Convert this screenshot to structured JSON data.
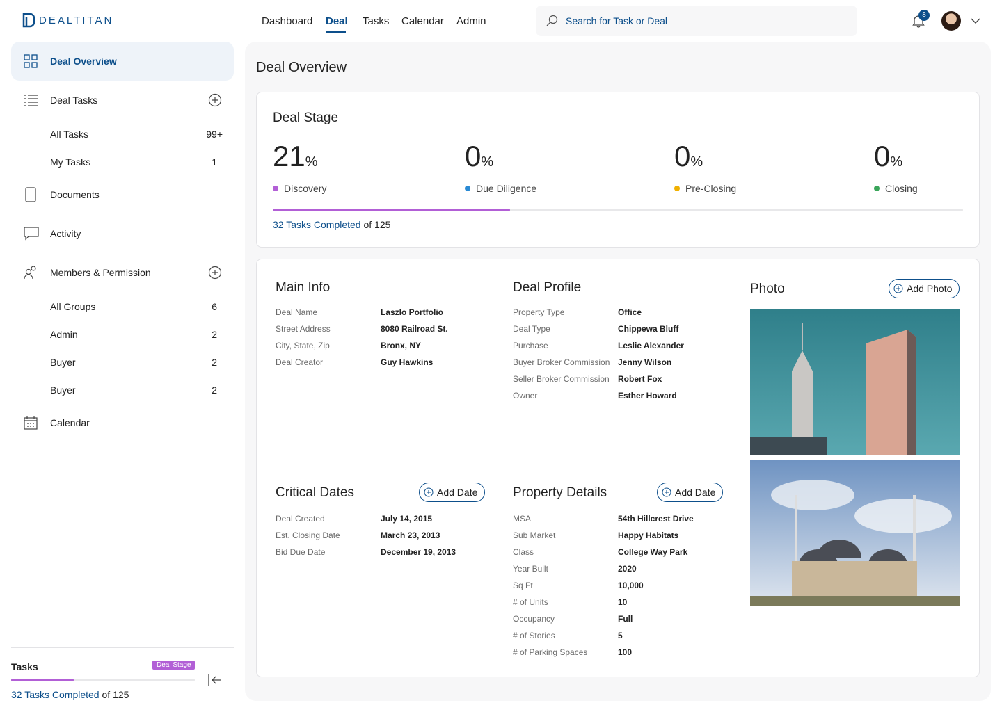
{
  "header": {
    "logo": "DEALTITAN",
    "nav": [
      "Dashboard",
      "Deal",
      "Tasks",
      "Calendar",
      "Admin"
    ],
    "search_placeholder": "Search for Task or Deal",
    "notifications": "8"
  },
  "sidebar": {
    "deal_overview": "Deal Overview",
    "deal_tasks": {
      "label": "Deal Tasks",
      "items": [
        [
          "All Tasks",
          "99+"
        ],
        [
          "My Tasks",
          "1"
        ]
      ]
    },
    "documents": "Documents",
    "activity": "Activity",
    "members": {
      "label": "Members & Permission",
      "items": [
        [
          "All Groups",
          "6"
        ],
        [
          "Admin",
          "2"
        ],
        [
          "Buyer",
          "2"
        ],
        [
          "Buyer",
          "2"
        ]
      ]
    },
    "calendar": "Calendar",
    "footer": {
      "title": "Tasks",
      "badge": "Deal Stage"
    }
  },
  "main": {
    "title": "Deal Overview",
    "deal_stage": {
      "title": "Deal Stage",
      "stages": [
        {
          "percent": "21",
          "unit": "%",
          "label": "Discovery",
          "color": "#b25fd6"
        },
        {
          "percent": "0",
          "unit": "%",
          "label": "Due Diligence",
          "color": "#2a8ad4"
        },
        {
          "percent": "0",
          "unit": "%",
          "label": "Pre-Closing",
          "color": "#f0b000"
        },
        {
          "percent": "0",
          "unit": "%",
          "label": "Closing",
          "color": "#3aa55a"
        }
      ],
      "progress": {
        "completed": "32 Tasks Completed",
        "total": "of 125"
      }
    },
    "main_info": {
      "title": "Main Info",
      "fields": [
        [
          "Deal Name",
          "Laszlo Portfolio"
        ],
        [
          "Street Address",
          "8080 Railroad St."
        ],
        [
          "City, State, Zip",
          "Bronx, NY"
        ],
        [
          "Deal Creator",
          "Guy Hawkins"
        ]
      ]
    },
    "deal_profile": {
      "title": "Deal Profile",
      "fields": [
        [
          "Property Type",
          "Office"
        ],
        [
          "Deal Type",
          "Chippewa Bluff"
        ],
        [
          "Purchase",
          "Leslie Alexander"
        ],
        [
          "Buyer Broker Commission",
          "Jenny Wilson"
        ],
        [
          "Seller Broker Commission",
          "Robert Fox"
        ],
        [
          "Owner",
          "Esther Howard"
        ]
      ]
    },
    "photo": {
      "title": "Photo",
      "button": "Add Photo"
    },
    "critical_dates": {
      "title": "Critical Dates",
      "button": "Add Date",
      "fields": [
        [
          "Deal Created",
          "July 14, 2015"
        ],
        [
          "Est. Closing Date",
          "March 23, 2013"
        ],
        [
          "Bid Due Date",
          "December 19, 2013"
        ]
      ]
    },
    "property_details": {
      "title": "Property Details",
      "button": "Add Date",
      "fields": [
        [
          "MSA",
          "54th Hillcrest Drive"
        ],
        [
          "Sub Market",
          "Happy Habitats"
        ],
        [
          "Class",
          "College Way Park"
        ],
        [
          "Year Built",
          "2020"
        ],
        [
          "Sq Ft",
          "10,000"
        ],
        [
          "# of Units",
          "10"
        ],
        [
          "Occupancy",
          "Full"
        ],
        [
          "# of Stories",
          "5"
        ],
        [
          "# of Parking Spaces",
          "100"
        ]
      ]
    }
  }
}
